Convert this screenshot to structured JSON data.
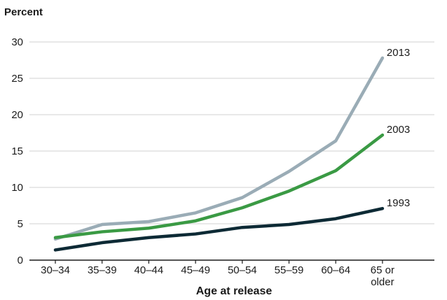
{
  "chart_data": {
    "type": "line",
    "ylabel": "Percent",
    "xlabel": "Age at release",
    "categories": [
      "30–34",
      "35–39",
      "40–44",
      "45–49",
      "50–54",
      "55–59",
      "60–64",
      "65 or older"
    ],
    "category_lines": [
      [
        "30–34"
      ],
      [
        "35–39"
      ],
      [
        "40–44"
      ],
      [
        "45–49"
      ],
      [
        "50–54"
      ],
      [
        "55–59"
      ],
      [
        "60–64"
      ],
      [
        "65 or",
        "older"
      ]
    ],
    "ylim": [
      0,
      30
    ],
    "yticks": [
      "0",
      "5",
      "10",
      "15",
      "20",
      "25",
      "30"
    ],
    "grid": true,
    "series": [
      {
        "name": "2013",
        "color": "#9aacb6",
        "values": [
          2.9,
          4.9,
          5.3,
          6.5,
          8.6,
          12.2,
          16.4,
          27.8
        ]
      },
      {
        "name": "2003",
        "color": "#3a9a44",
        "values": [
          3.1,
          3.9,
          4.4,
          5.4,
          7.2,
          9.5,
          12.3,
          17.2
        ]
      },
      {
        "name": "1993",
        "color": "#0d2a35",
        "values": [
          1.4,
          2.4,
          3.1,
          3.6,
          4.5,
          4.9,
          5.7,
          7.1
        ]
      }
    ]
  }
}
